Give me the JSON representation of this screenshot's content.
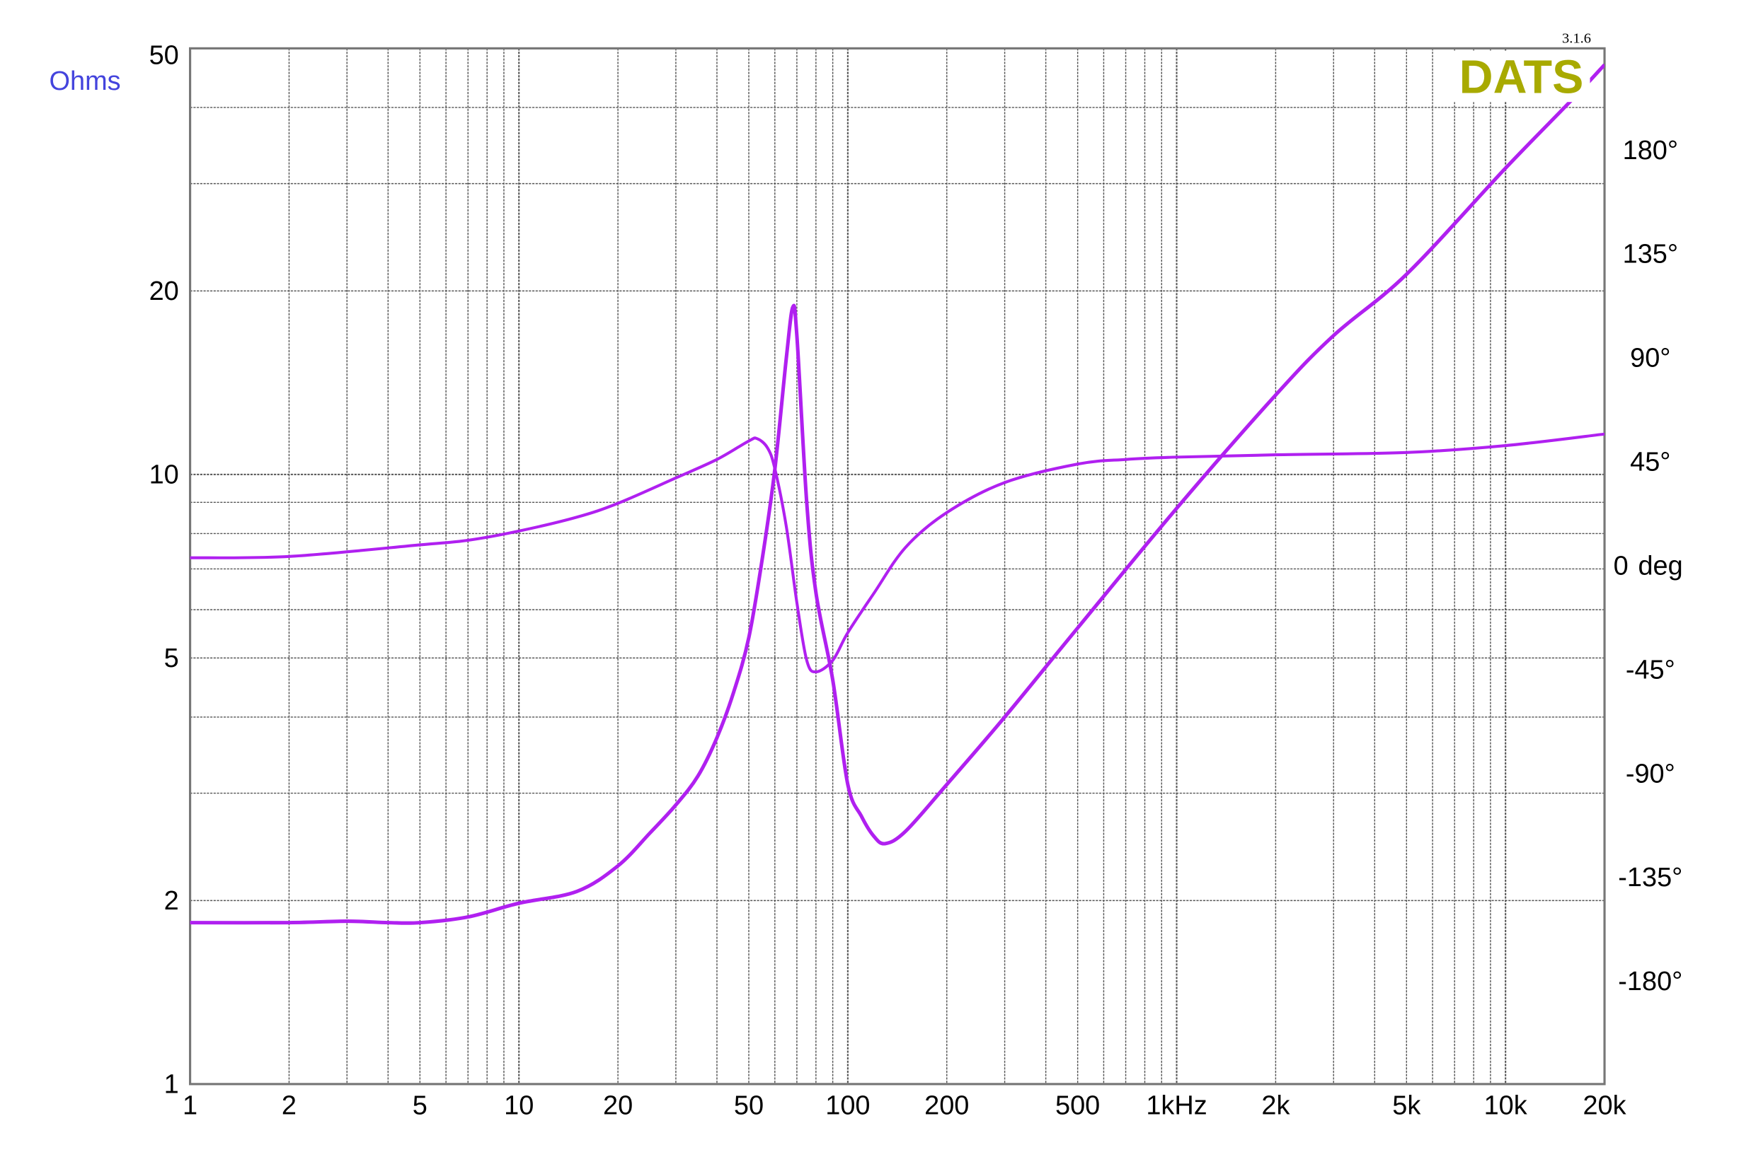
{
  "chart_data": {
    "type": "line",
    "version_label": "3.1.6",
    "logo_text": "DATS",
    "y_left_label": "Ohms",
    "y_right_label_value": "0",
    "y_right_label_unit": "deg",
    "x_scale": "log",
    "y_left_scale": "log",
    "xlim": [
      1,
      20000
    ],
    "ylim_left": [
      1,
      50
    ],
    "ylim_right_deg": [
      -180,
      223
    ],
    "grid": true,
    "x_ticks": [
      "1",
      "2",
      "5",
      "10",
      "20",
      "50",
      "100",
      "200",
      "500",
      "1kHz",
      "2k",
      "5k",
      "10k",
      "20k"
    ],
    "y_left_ticks": [
      "50",
      "20",
      "10",
      "5",
      "2",
      "1"
    ],
    "y_right_ticks": [
      "180°",
      "135°",
      "90°",
      "45°",
      "-45°",
      "-90°",
      "-135°",
      "-180°"
    ],
    "colors": {
      "curve": "#b020f0",
      "ohms_label": "#4444dd",
      "deg_label": "#e83030",
      "logo": "#a8aa00",
      "grid": "#555555",
      "frame": "#777777"
    },
    "series": [
      {
        "quantity": "impedance_ohms",
        "x": [
          1,
          2,
          3,
          4,
          5,
          7,
          10,
          15,
          20,
          25,
          30,
          35,
          40,
          45,
          50,
          55,
          60,
          65,
          68,
          70,
          75,
          80,
          90,
          100,
          110,
          120,
          130,
          150,
          200,
          300,
          500,
          1000,
          2000,
          3000,
          5000,
          10000,
          15800,
          20000
        ],
        "y": [
          1.84,
          1.84,
          1.85,
          1.84,
          1.84,
          1.88,
          1.98,
          2.07,
          2.28,
          2.58,
          2.87,
          3.2,
          3.7,
          4.4,
          5.4,
          7.3,
          10.2,
          15.5,
          18.8,
          16.9,
          9,
          6.4,
          4.6,
          3.1,
          2.75,
          2.55,
          2.48,
          2.6,
          3.1,
          4.0,
          5.6,
          8.8,
          13.5,
          16.9,
          21.3,
          31.8,
          41,
          47
        ]
      },
      {
        "quantity": "phase_deg",
        "x": [
          1,
          2,
          5,
          7,
          10,
          15,
          20,
          30,
          40,
          50,
          53,
          57,
          60,
          65,
          70,
          75,
          80,
          90,
          100,
          120,
          150,
          200,
          300,
          500,
          700,
          1000,
          2000,
          5000,
          10000,
          20000
        ],
        "y": [
          3.4,
          4,
          9,
          11,
          15,
          21,
          27,
          38,
          46,
          54,
          55,
          51,
          42,
          17,
          -16,
          -41,
          -46,
          -41,
          -29,
          -12,
          8,
          23,
          36,
          44,
          46,
          47,
          48,
          49,
          52,
          57
        ]
      }
    ]
  }
}
